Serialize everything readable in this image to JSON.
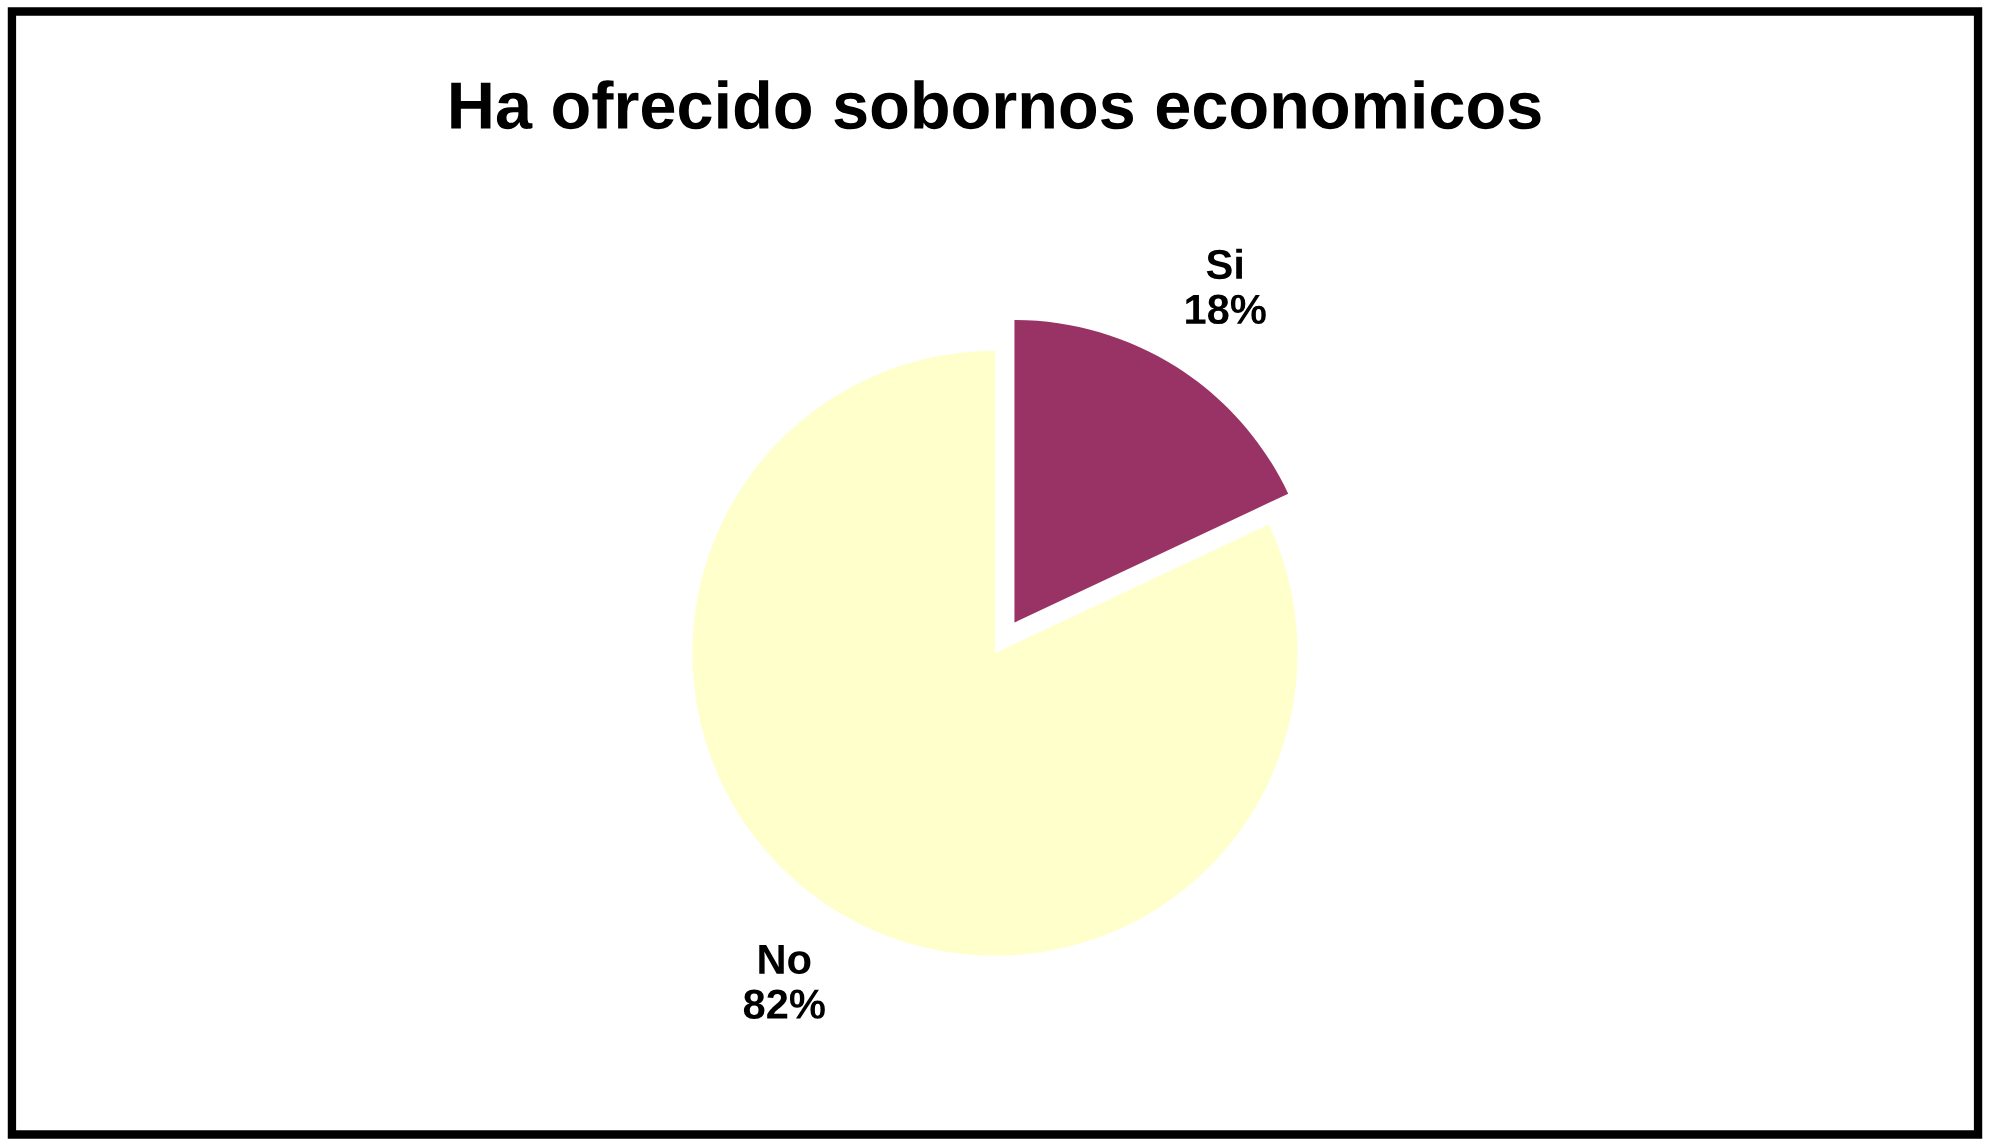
{
  "chart_data": {
    "type": "pie",
    "title": "Ha ofrecido sobornos economicos",
    "categories": [
      "Si",
      "No"
    ],
    "values": [
      18,
      82
    ],
    "colors": [
      "#993366",
      "#ffffcc"
    ],
    "value_labels": [
      "18%",
      "82%"
    ]
  }
}
